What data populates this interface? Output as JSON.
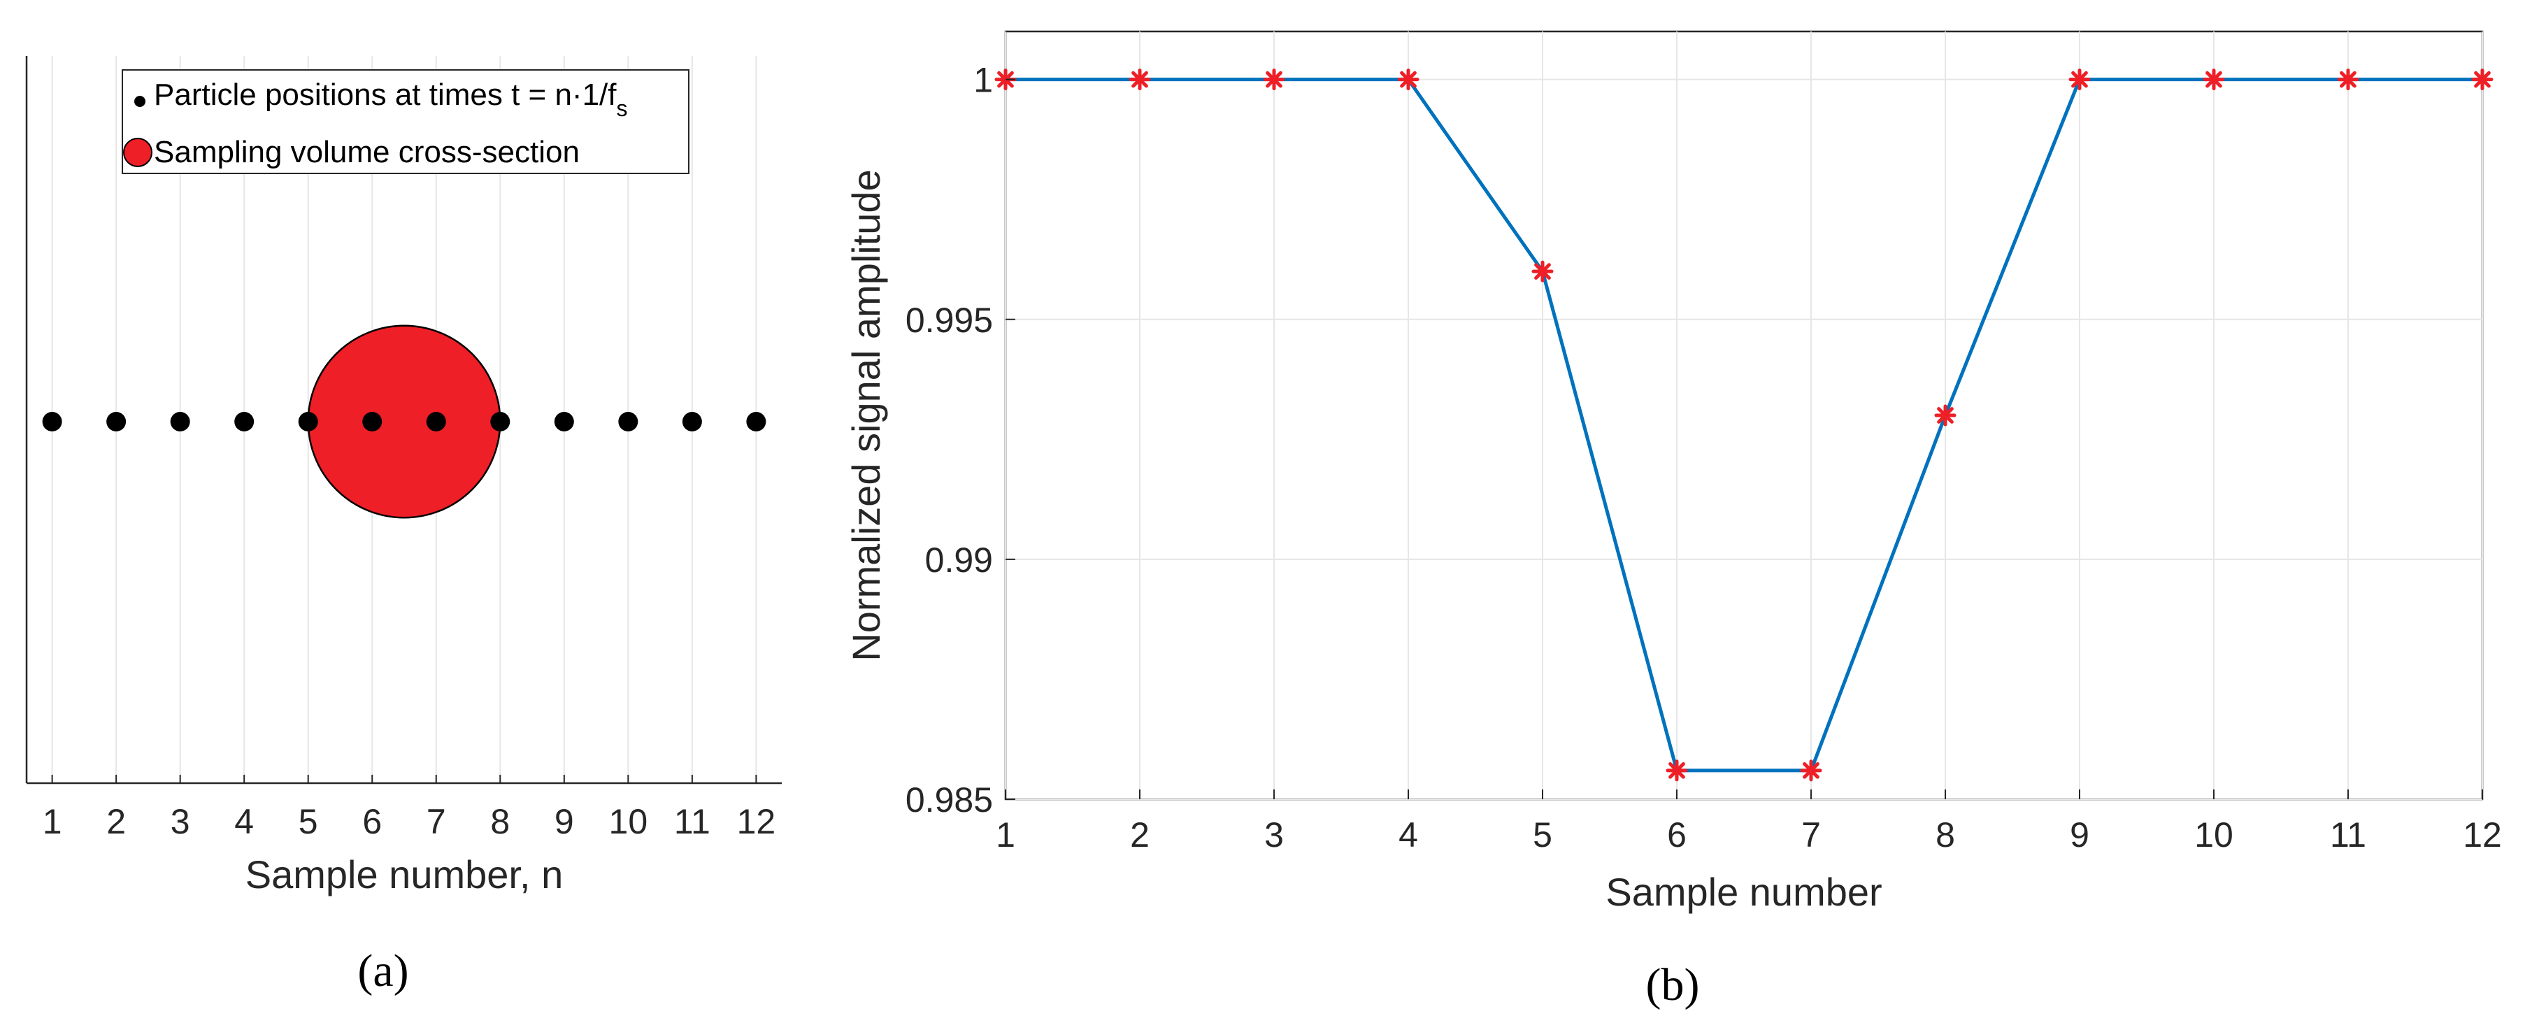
{
  "chart_data": [
    {
      "panel": "(a)",
      "type": "scatter",
      "x": [
        1,
        2,
        3,
        4,
        5,
        6,
        7,
        8,
        9,
        10,
        11,
        12
      ],
      "xlim": [
        0.6,
        12.4
      ],
      "ylim": [
        -1,
        1
      ],
      "xticks": [
        "1",
        "2",
        "3",
        "4",
        "5",
        "6",
        "7",
        "8",
        "9",
        "10",
        "11",
        "12"
      ],
      "xlabel": "Sample number, n",
      "ylabel": "",
      "grid": "vertical",
      "legend_position": "top-right",
      "series": [
        {
          "name": "Particle positions at times t = n·1/f",
          "name_subscript": "s",
          "marker": "dot",
          "color": "#000000",
          "x": [
            1,
            2,
            3,
            4,
            5,
            6,
            7,
            8,
            9,
            10,
            11,
            12
          ],
          "y": [
            0,
            0,
            0,
            0,
            0,
            0,
            0,
            0,
            0,
            0,
            0,
            0
          ]
        },
        {
          "name": "Sampling volume cross-section",
          "marker": "circle",
          "color": "#ee1f26",
          "center_x": 6.5,
          "center_y": 0,
          "radius_x": 1.5
        }
      ]
    },
    {
      "panel": "(b)",
      "type": "line",
      "x": [
        1,
        2,
        3,
        4,
        5,
        6,
        7,
        8,
        9,
        10,
        11,
        12
      ],
      "series": [
        {
          "color": "#0072bd",
          "marker": "asterisk",
          "marker_color": "#ee1f26",
          "values": [
            1,
            1,
            1,
            1,
            0.996,
            0.9856,
            0.9856,
            0.993,
            1,
            1,
            1,
            1
          ]
        }
      ],
      "xlim": [
        1,
        12
      ],
      "ylim": [
        0.985,
        1.001
      ],
      "xticks": [
        "1",
        "2",
        "3",
        "4",
        "5",
        "6",
        "7",
        "8",
        "9",
        "10",
        "11",
        "12"
      ],
      "yticks": [
        {
          "v": 0.985,
          "label": "0.985"
        },
        {
          "v": 0.99,
          "label": "0.99"
        },
        {
          "v": 0.995,
          "label": "0.995"
        },
        {
          "v": 1,
          "label": "1"
        }
      ],
      "xlabel": "Sample number",
      "ylabel": "Normalized signal amplitude",
      "grid": "both"
    }
  ]
}
